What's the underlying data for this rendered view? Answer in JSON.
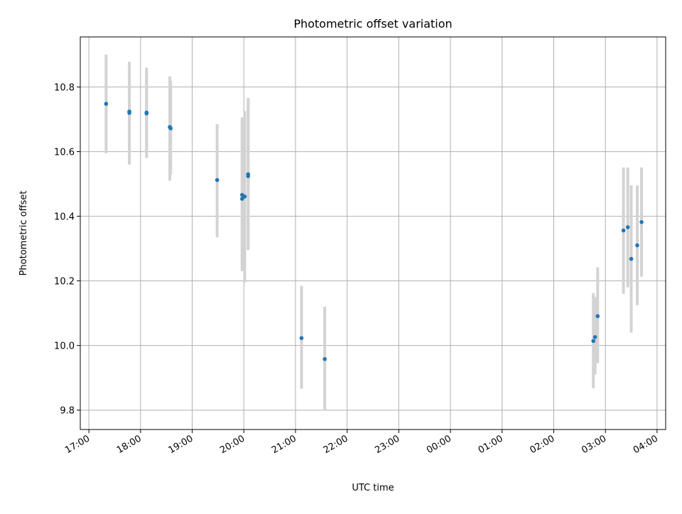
{
  "chart_data": {
    "type": "scatter",
    "title": "Photometric offset variation",
    "xlabel": "UTC time",
    "ylabel": "Photometric offset",
    "x_tick_labels": [
      "17:00",
      "18:00",
      "19:00",
      "20:00",
      "21:00",
      "22:00",
      "23:00",
      "00:00",
      "01:00",
      "02:00",
      "03:00",
      "04:00"
    ],
    "y_tick_labels": [
      "9.8",
      "10.0",
      "10.2",
      "10.4",
      "10.6",
      "10.8"
    ],
    "y_ticks": [
      9.8,
      10.0,
      10.2,
      10.4,
      10.6,
      10.8
    ],
    "x_range": [
      "16:50",
      "04:10"
    ],
    "ylim": [
      9.74,
      10.955
    ],
    "grid": true,
    "colors": {
      "points": "#1f77b4",
      "error_bars": "#d3d3d3",
      "grid": "#b0b0b0"
    },
    "points": [
      {
        "x": "17:20",
        "y": 10.748,
        "ylow": 10.595,
        "yhigh": 10.9
      },
      {
        "x": "17:47",
        "y": 10.724,
        "ylow": 10.56,
        "yhigh": 10.878
      },
      {
        "x": "17:47",
        "y": 10.72,
        "ylow": 10.6,
        "yhigh": 10.87
      },
      {
        "x": "18:07",
        "y": 10.721,
        "ylow": 10.58,
        "yhigh": 10.86
      },
      {
        "x": "18:07",
        "y": 10.718,
        "ylow": 10.6,
        "yhigh": 10.85
      },
      {
        "x": "18:34",
        "y": 10.676,
        "ylow": 10.51,
        "yhigh": 10.833
      },
      {
        "x": "18:35",
        "y": 10.672,
        "ylow": 10.53,
        "yhigh": 10.82
      },
      {
        "x": "19:29",
        "y": 10.512,
        "ylow": 10.335,
        "yhigh": 10.685
      },
      {
        "x": "19:58",
        "y": 10.466,
        "ylow": 10.23,
        "yhigh": 10.706
      },
      {
        "x": "19:58",
        "y": 10.454,
        "ylow": 10.23,
        "yhigh": 10.69
      },
      {
        "x": "20:01",
        "y": 10.461,
        "ylow": 10.195,
        "yhigh": 10.726
      },
      {
        "x": "20:05",
        "y": 10.53,
        "ylow": 10.295,
        "yhigh": 10.766
      },
      {
        "x": "20:05",
        "y": 10.524,
        "ylow": 10.3,
        "yhigh": 10.75
      },
      {
        "x": "21:07",
        "y": 10.023,
        "ylow": 9.866,
        "yhigh": 10.185
      },
      {
        "x": "21:34",
        "y": 9.958,
        "ylow": 9.8,
        "yhigh": 10.12
      },
      {
        "x": "02:46",
        "y": 10.014,
        "ylow": 9.868,
        "yhigh": 10.162
      },
      {
        "x": "02:48",
        "y": 10.026,
        "ylow": 9.91,
        "yhigh": 10.15
      },
      {
        "x": "02:51",
        "y": 10.091,
        "ylow": 9.945,
        "yhigh": 10.242
      },
      {
        "x": "03:21",
        "y": 10.356,
        "ylow": 10.16,
        "yhigh": 10.551
      },
      {
        "x": "03:26",
        "y": 10.366,
        "ylow": 10.18,
        "yhigh": 10.551
      },
      {
        "x": "03:30",
        "y": 10.268,
        "ylow": 10.04,
        "yhigh": 10.496
      },
      {
        "x": "03:37",
        "y": 10.31,
        "ylow": 10.125,
        "yhigh": 10.495
      },
      {
        "x": "03:42",
        "y": 10.382,
        "ylow": 10.213,
        "yhigh": 10.551
      }
    ]
  }
}
